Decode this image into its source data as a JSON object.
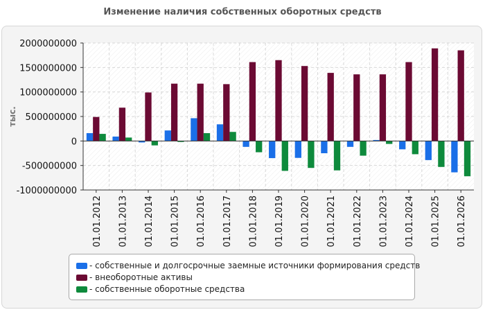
{
  "title": "Изменение наличия собственных оборотных средств",
  "chart_data": {
    "type": "bar",
    "ylabel": "тыс.",
    "ylim": [
      -1000000000,
      2000000000
    ],
    "yticks": [
      -1000000000,
      -500000000,
      0,
      500000000,
      1000000000,
      1500000000,
      2000000000
    ],
    "ytick_labels": [
      "-1000000000",
      "-500000000",
      "0",
      "500000000",
      "1000000000",
      "1500000000",
      "2000000000"
    ],
    "categories": [
      "01.01.2012",
      "01.01.2013",
      "01.01.2014",
      "01.01.2015",
      "01.01.2016",
      "01.01.2017",
      "01.01.2018",
      "01.01.2019",
      "01.01.2020",
      "01.01.2021",
      "01.01.2022",
      "01.01.2023",
      "01.01.2024",
      "01.01.2025",
      "01.01.2026"
    ],
    "series": [
      {
        "name": "- собственные и долгосрочные заемные источники формирования средств",
        "color": "#1a6fe8",
        "values": [
          160000000,
          90000000,
          -30000000,
          215000000,
          465000000,
          340000000,
          -120000000,
          -350000000,
          -345000000,
          -250000000,
          -120000000,
          20000000,
          -170000000,
          -390000000,
          -640000000
        ]
      },
      {
        "name": "- внеоборотные активы",
        "color": "#6b0a33",
        "values": [
          490000000,
          680000000,
          990000000,
          1170000000,
          1170000000,
          1160000000,
          1610000000,
          1650000000,
          1530000000,
          1390000000,
          1360000000,
          1360000000,
          1610000000,
          1890000000,
          1850000000
        ]
      },
      {
        "name": "- собственные оборотные средства",
        "color": "#0e8a3c",
        "values": [
          145000000,
          70000000,
          -90000000,
          -20000000,
          160000000,
          185000000,
          -230000000,
          -610000000,
          -550000000,
          -600000000,
          -300000000,
          -60000000,
          -270000000,
          -530000000,
          -720000000
        ]
      }
    ],
    "grid": true,
    "legend_position": "bottom"
  }
}
